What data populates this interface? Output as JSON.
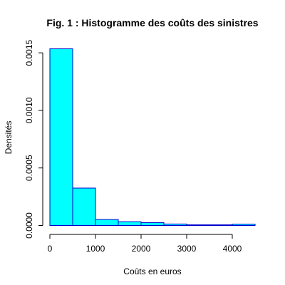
{
  "chart_data": {
    "type": "bar",
    "title": "Fig. 1 : Histogramme des coûts des sinistres",
    "xlabel": "Coûts en euros",
    "ylabel": "Densités",
    "bin_edges": [
      0,
      500,
      1000,
      1500,
      2000,
      2500,
      3000,
      3500,
      4000,
      4500
    ],
    "values": [
      0.001535,
      0.000325,
      5.2e-05,
      3.3e-05,
      2.5e-05,
      1.3e-05,
      6e-06,
      6e-06,
      1.2e-05
    ],
    "x_ticks": [
      0,
      1000,
      2000,
      3000,
      4000
    ],
    "x_tick_labels": [
      "0",
      "1000",
      "2000",
      "3000",
      "4000"
    ],
    "y_ticks": [
      0,
      0.0005,
      0.001,
      0.0015
    ],
    "y_tick_labels": [
      "0.0000",
      "0.0005",
      "0.0010",
      "0.0015"
    ],
    "xlim": [
      0,
      4500
    ],
    "ylim": [
      0,
      0.0016
    ],
    "grid": false,
    "bar_fill": "#00ffff",
    "bar_stroke": "#0000cd"
  }
}
